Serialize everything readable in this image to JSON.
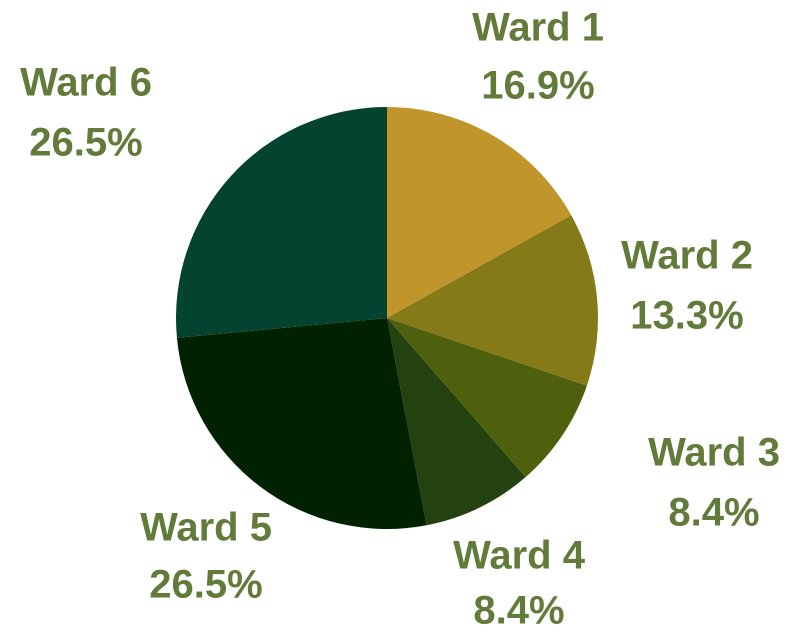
{
  "chart_data": {
    "type": "pie",
    "categories": [
      "Ward 1",
      "Ward 2",
      "Ward 3",
      "Ward 4",
      "Ward 5",
      "Ward 6"
    ],
    "values": [
      16.9,
      13.3,
      8.4,
      8.4,
      26.5,
      26.5
    ],
    "value_labels": [
      "16.9%",
      "13.3%",
      "8.4%",
      "8.4%",
      "26.5%",
      "26.5%"
    ],
    "colors": [
      "#c0952b",
      "#857a18",
      "#4e5f0e",
      "#24420f",
      "#002200",
      "#04432f"
    ],
    "label_color": "#627a3a"
  }
}
